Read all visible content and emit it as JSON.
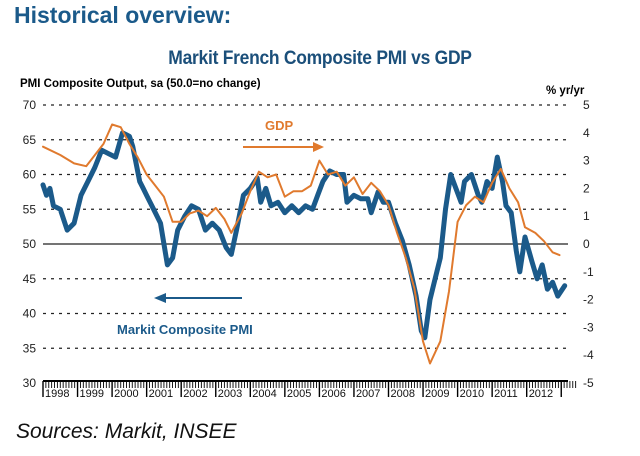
{
  "page": {
    "heading": "Historical overview:",
    "sources": "Sources: Markit, INSEE"
  },
  "chart_data": {
    "type": "line",
    "title": "Markit French Composite PMI vs GDP",
    "ylabel": "PMI Composite Output, sa (50.0=no change)",
    "y2label": "% yr/yr",
    "ylim": [
      30,
      70
    ],
    "y2lim": [
      -5,
      5
    ],
    "yticks": [
      30,
      35,
      40,
      45,
      50,
      55,
      60,
      65,
      70
    ],
    "y2ticks": [
      -5,
      -4,
      -3,
      -2,
      -1,
      0,
      1,
      2,
      3,
      4,
      5
    ],
    "xlim": [
      1998.0,
      2013.4
    ],
    "xtick_labels": [
      "1998",
      "1999",
      "2000",
      "2001",
      "2002",
      "2003",
      "2004",
      "2005",
      "2006",
      "2007",
      "2008",
      "2009",
      "2010",
      "2011",
      "2012"
    ],
    "grid": "horizontal dashed",
    "reference_line": 50,
    "annotations": [
      {
        "text": "GDP",
        "arrow": "right",
        "series": "GDP"
      },
      {
        "text": "Markit Composite PMI",
        "arrow": "left",
        "series": "Markit Composite PMI"
      }
    ],
    "series": [
      {
        "name": "Markit Composite PMI",
        "axis": "left",
        "color": "#1b5a8a",
        "x": [
          1998.0,
          1998.1,
          1998.2,
          1998.3,
          1998.5,
          1998.7,
          1998.9,
          1999.1,
          1999.3,
          1999.5,
          1999.7,
          1999.9,
          2000.1,
          2000.3,
          2000.5,
          2000.6,
          2000.8,
          2000.9,
          2001.0,
          2001.2,
          2001.4,
          2001.6,
          2001.75,
          2001.9,
          2002.1,
          2002.3,
          2002.5,
          2002.7,
          2002.9,
          2003.1,
          2003.3,
          2003.45,
          2003.6,
          2003.8,
          2004.0,
          2004.2,
          2004.3,
          2004.45,
          2004.6,
          2004.8,
          2005.0,
          2005.2,
          2005.4,
          2005.6,
          2005.8,
          2005.95,
          2006.1,
          2006.3,
          2006.5,
          2006.7,
          2006.8,
          2007.0,
          2007.2,
          2007.4,
          2007.5,
          2007.7,
          2007.85,
          2008.0,
          2008.2,
          2008.4,
          2008.6,
          2008.8,
          2008.95,
          2009.05,
          2009.2,
          2009.35,
          2009.5,
          2009.65,
          2009.8,
          2009.95,
          2010.1,
          2010.2,
          2010.4,
          2010.6,
          2010.7,
          2010.85,
          2011.0,
          2011.15,
          2011.3,
          2011.4,
          2011.55,
          2011.7,
          2011.8,
          2011.95,
          2012.15,
          2012.3,
          2012.45,
          2012.6,
          2012.75,
          2012.9,
          2013.1
        ],
        "values": [
          58.5,
          57,
          58,
          55.5,
          55,
          52,
          53,
          57,
          59,
          61,
          63.5,
          63,
          62.5,
          66,
          65.5,
          64,
          59,
          58,
          57,
          55,
          53,
          47,
          48,
          52,
          54,
          55.5,
          55,
          52,
          53,
          52,
          49.5,
          48.5,
          52,
          57,
          58,
          59.5,
          56,
          58,
          55.5,
          56,
          54.5,
          55.5,
          54.5,
          55.5,
          55,
          57,
          59,
          60.5,
          60,
          60,
          56,
          57,
          56.5,
          56.5,
          54.5,
          57.5,
          56,
          56,
          53,
          50.5,
          47,
          42.5,
          37.5,
          36.5,
          42,
          45,
          48,
          55,
          60,
          58,
          56,
          59,
          60,
          57,
          56,
          59,
          58,
          62.5,
          59,
          55.5,
          54.5,
          49,
          46,
          51,
          47.5,
          45,
          47,
          43.5,
          44.5,
          42.5,
          44
        ]
      },
      {
        "name": "GDP",
        "axis": "right",
        "color": "#e07a2e",
        "x": [
          1998.0,
          1998.5,
          1998.9,
          1999.25,
          1999.75,
          2000.0,
          2000.25,
          2000.5,
          2000.75,
          2001.0,
          2001.25,
          2001.5,
          2001.75,
          2002.0,
          2002.25,
          2002.5,
          2002.75,
          2003.0,
          2003.25,
          2003.45,
          2003.75,
          2004.0,
          2004.25,
          2004.5,
          2004.75,
          2005.0,
          2005.25,
          2005.5,
          2005.75,
          2006.0,
          2006.25,
          2006.5,
          2006.75,
          2007.0,
          2007.25,
          2007.5,
          2007.75,
          2008.0,
          2008.25,
          2008.5,
          2008.75,
          2009.0,
          2009.2,
          2009.5,
          2009.75,
          2010.0,
          2010.25,
          2010.5,
          2010.75,
          2011.0,
          2011.25,
          2011.5,
          2011.75,
          2011.95,
          2012.25,
          2012.5,
          2012.75,
          2012.95
        ],
        "values": [
          3.5,
          3.2,
          2.9,
          2.8,
          3.6,
          4.3,
          4.2,
          3.6,
          3.1,
          2.5,
          2.1,
          1.7,
          0.8,
          0.8,
          1.1,
          1.2,
          1.0,
          1.3,
          0.9,
          0.4,
          1.1,
          1.9,
          2.6,
          2.4,
          2.5,
          1.7,
          1.9,
          1.9,
          2.1,
          3.0,
          2.5,
          2.6,
          2.1,
          2.4,
          1.8,
          2.2,
          1.9,
          1.4,
          0.4,
          -0.5,
          -1.6,
          -3.5,
          -4.3,
          -3.5,
          -1.7,
          0.8,
          1.4,
          1.7,
          1.5,
          2.2,
          2.7,
          2.0,
          1.5,
          0.6,
          0.4,
          0.1,
          -0.3,
          -0.4
        ]
      }
    ]
  }
}
